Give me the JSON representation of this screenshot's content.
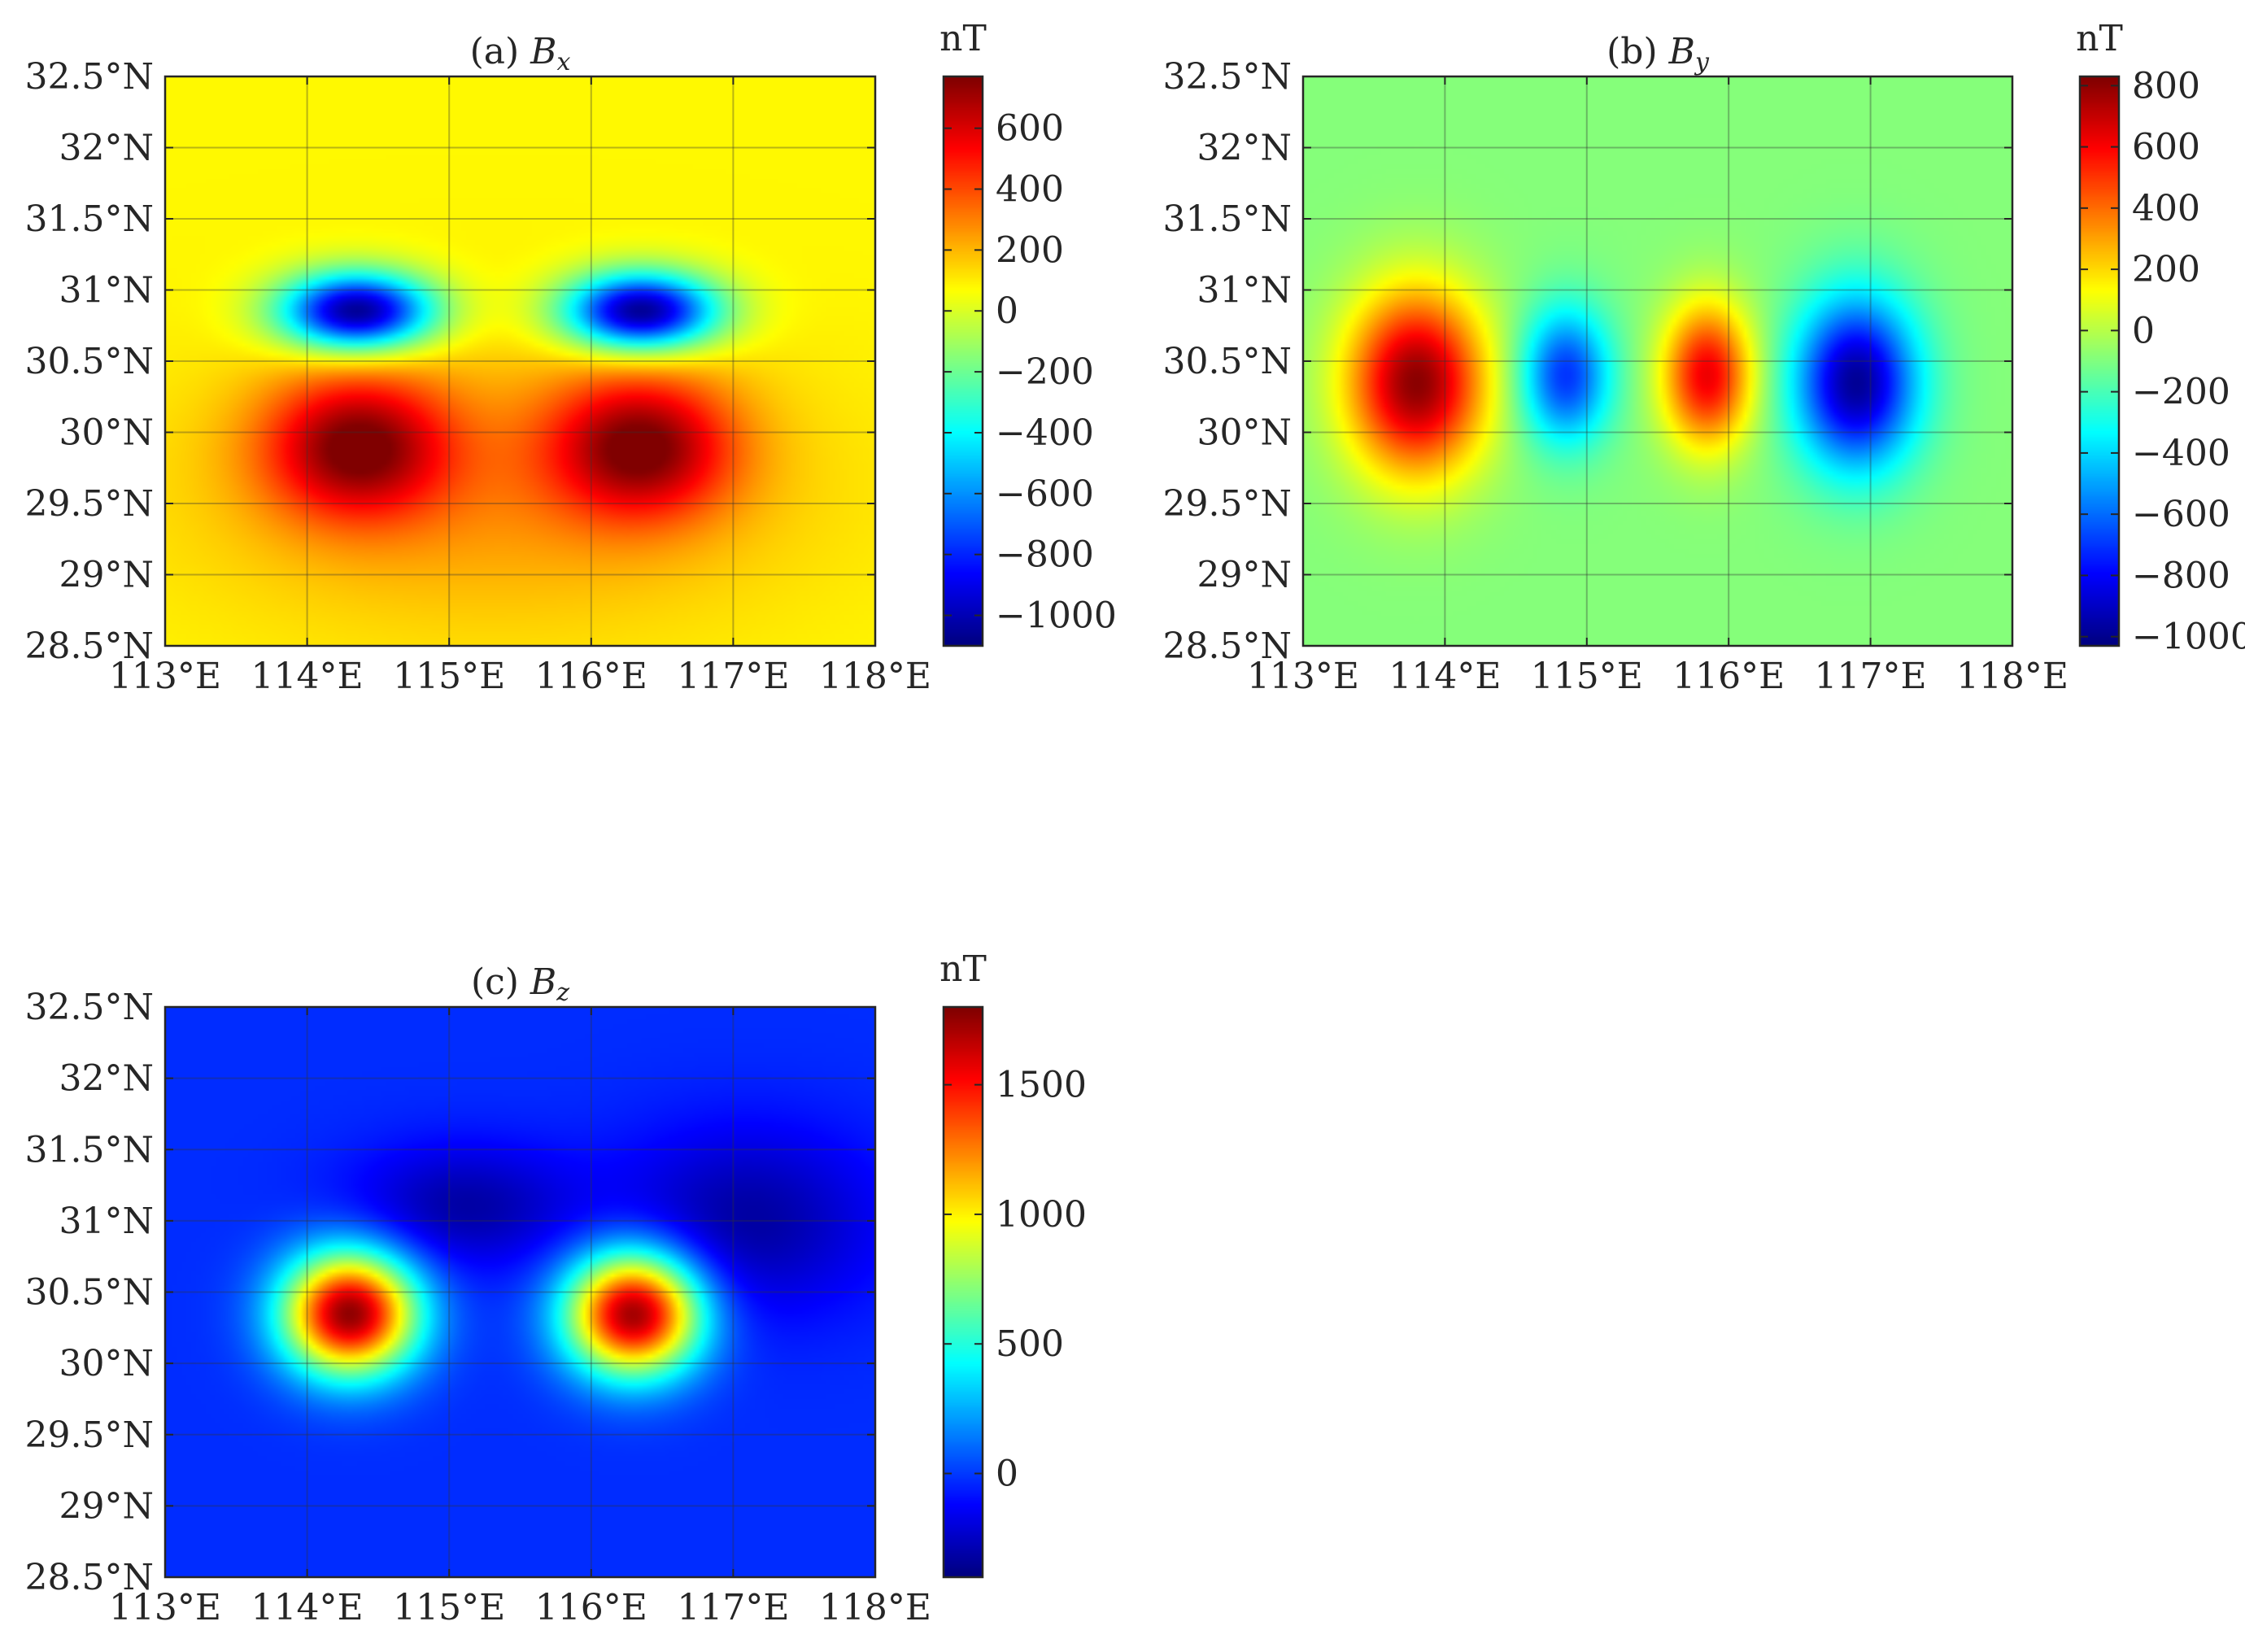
{
  "chart_data": [
    {
      "type": "heatmap",
      "title": "(a) B_x",
      "title_prefix": "(a)",
      "title_symbol": "B",
      "title_subscript": "x",
      "xlabel": "",
      "ylabel": "",
      "x_ticks": [
        "113°E",
        "114°E",
        "115°E",
        "116°E",
        "117°E",
        "118°E"
      ],
      "y_ticks": [
        "32.5°N",
        "32°N",
        "31.5°N",
        "31°N",
        "30.5°N",
        "30°N",
        "29.5°N",
        "29°N",
        "28.5°N"
      ],
      "xlim": [
        113,
        118
      ],
      "ylim": [
        28.5,
        32.5
      ],
      "grid": true,
      "colormap": "jet",
      "colorbar": {
        "unit": "nT",
        "range": [
          -1100,
          770
        ],
        "ticks": [
          600,
          400,
          200,
          0,
          -200,
          -400,
          -600,
          -800,
          -1000
        ],
        "tick_labels": [
          "600",
          "400",
          "200",
          "0",
          "−200",
          "−400",
          "−600",
          "−800",
          "−1000"
        ]
      },
      "background": 80,
      "features": [
        {
          "lon": 114.35,
          "lat": 30.85,
          "sx": 0.38,
          "sy": 0.19,
          "amp": -1180
        },
        {
          "lon": 116.35,
          "lat": 30.85,
          "sx": 0.38,
          "sy": 0.19,
          "amp": -1180
        },
        {
          "lon": 114.35,
          "lat": 29.9,
          "sx": 0.45,
          "sy": 0.35,
          "amp": 620
        },
        {
          "lon": 116.35,
          "lat": 29.9,
          "sx": 0.45,
          "sy": 0.35,
          "amp": 620
        },
        {
          "lon": 115.3,
          "lat": 29.6,
          "sx": 1.5,
          "sy": 0.7,
          "amp": 180
        }
      ]
    },
    {
      "type": "heatmap",
      "title": "(b) B_y",
      "title_prefix": "(b)",
      "title_symbol": "B",
      "title_subscript": "y",
      "xlabel": "",
      "ylabel": "",
      "x_ticks": [
        "113°E",
        "114°E",
        "115°E",
        "116°E",
        "117°E",
        "118°E"
      ],
      "y_ticks": [
        "32.5°N",
        "32°N",
        "31.5°N",
        "31°N",
        "30.5°N",
        "30°N",
        "29.5°N",
        "29°N",
        "28.5°N"
      ],
      "xlim": [
        113,
        118
      ],
      "ylim": [
        28.5,
        32.5
      ],
      "grid": true,
      "colormap": "jet",
      "colorbar": {
        "unit": "nT",
        "range": [
          -1030,
          830
        ],
        "ticks": [
          800,
          600,
          400,
          200,
          0,
          -200,
          -400,
          -600,
          -800,
          -1000
        ],
        "tick_labels": [
          "800",
          "600",
          "400",
          "200",
          "0",
          "−200",
          "−400",
          "−600",
          "−800",
          "−1000"
        ]
      },
      "background": -90,
      "features": [
        {
          "lon": 113.8,
          "lat": 30.35,
          "sx": 0.34,
          "sy": 0.45,
          "amp": 900
        },
        {
          "lon": 114.85,
          "lat": 30.4,
          "sx": 0.22,
          "sy": 0.33,
          "amp": -620
        },
        {
          "lon": 115.85,
          "lat": 30.4,
          "sx": 0.22,
          "sy": 0.35,
          "amp": 720
        },
        {
          "lon": 116.9,
          "lat": 30.35,
          "sx": 0.3,
          "sy": 0.42,
          "amp": -900
        }
      ]
    },
    {
      "type": "heatmap",
      "title": "(c) B_z",
      "title_prefix": "(c)",
      "title_symbol": "B",
      "title_subscript": "z",
      "xlabel": "",
      "ylabel": "",
      "x_ticks": [
        "113°E",
        "114°E",
        "115°E",
        "116°E",
        "117°E",
        "118°E"
      ],
      "y_ticks": [
        "32.5°N",
        "32°N",
        "31.5°N",
        "31°N",
        "30.5°N",
        "30°N",
        "29.5°N",
        "29°N",
        "28.5°N"
      ],
      "xlim": [
        113,
        118
      ],
      "ylim": [
        28.5,
        32.5
      ],
      "grid": true,
      "colormap": "jet",
      "colorbar": {
        "unit": "nT",
        "range": [
          -400,
          1800
        ],
        "ticks": [
          1500,
          1000,
          500,
          0
        ],
        "tick_labels": [
          "1500",
          "1000",
          "500",
          "0"
        ]
      },
      "background": -30,
      "features": [
        {
          "lon": 114.3,
          "lat": 30.35,
          "sx": 0.33,
          "sy": 0.3,
          "amp": 1800
        },
        {
          "lon": 116.3,
          "lat": 30.35,
          "sx": 0.33,
          "sy": 0.3,
          "amp": 1800
        },
        {
          "lon": 115.1,
          "lat": 31.1,
          "sx": 0.55,
          "sy": 0.3,
          "amp": -290
        },
        {
          "lon": 117.1,
          "lat": 31.0,
          "sx": 0.65,
          "sy": 0.45,
          "amp": -300
        }
      ]
    }
  ]
}
